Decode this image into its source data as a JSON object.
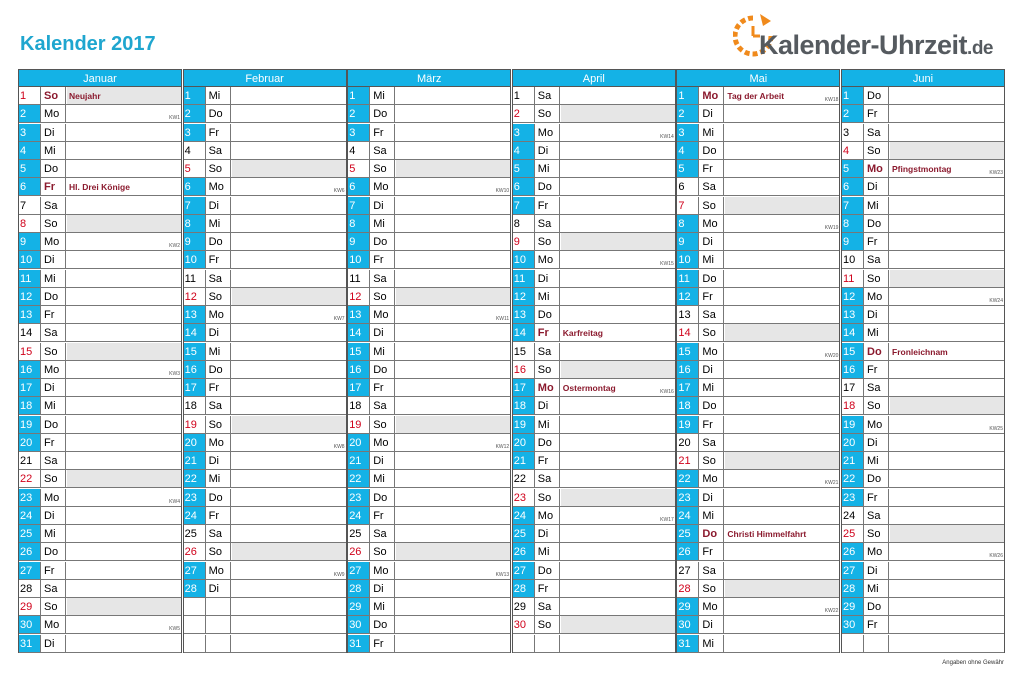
{
  "title": "Kalender 2017",
  "logo": {
    "name": "Kalender-Uhrzeit",
    "tld": ".de",
    "accent": "#f08a1c"
  },
  "colors": {
    "header": "#14b2e6",
    "weekday_num": "#14b2e6",
    "sunday": "#d0021b",
    "holiday": "#8b1a2e",
    "sunday_row": "#e6e6e6"
  },
  "footer": "Angaben ohne Gewähr",
  "months": [
    {
      "name": "Januar",
      "first": 0,
      "days": 31,
      "holidays": {
        "1": "Neujahr",
        "6": "Hl. Drei Könige"
      },
      "kw": {
        "2": "KW1",
        "9": "KW2",
        "16": "KW3",
        "23": "KW4",
        "30": "KW5"
      }
    },
    {
      "name": "Februar",
      "first": 3,
      "days": 28,
      "holidays": {},
      "kw": {
        "6": "KW6",
        "13": "KW7",
        "20": "KW8",
        "27": "KW9"
      }
    },
    {
      "name": "März",
      "first": 3,
      "days": 31,
      "holidays": {},
      "kw": {
        "6": "KW10",
        "13": "KW11",
        "20": "KW12",
        "27": "KW13"
      }
    },
    {
      "name": "April",
      "first": 6,
      "days": 30,
      "holidays": {
        "14": "Karfreitag",
        "17": "Ostermontag"
      },
      "kw": {
        "3": "KW14",
        "10": "KW15",
        "17": "KW16",
        "24": "KW17"
      }
    },
    {
      "name": "Mai",
      "first": 1,
      "days": 31,
      "holidays": {
        "1": "Tag der Arbeit",
        "25": "Christi Himmelfahrt"
      },
      "kw": {
        "1": "KW18",
        "8": "KW19",
        "15": "KW20",
        "22": "KW21",
        "29": "KW22"
      }
    },
    {
      "name": "Juni",
      "first": 4,
      "days": 30,
      "holidays": {
        "5": "Pfingstmontag",
        "15": "Fronleichnam"
      },
      "kw": {
        "5": "KW23",
        "12": "KW24",
        "19": "KW25",
        "26": "KW26"
      }
    }
  ],
  "weekdays": [
    "So",
    "Mo",
    "Di",
    "Mi",
    "Do",
    "Fr",
    "Sa"
  ]
}
